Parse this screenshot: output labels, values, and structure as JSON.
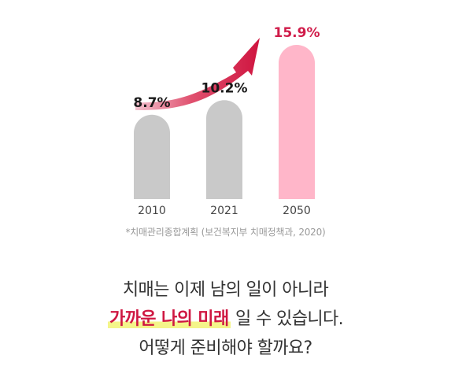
{
  "chart_data": {
    "type": "bar",
    "categories": [
      "2010",
      "2021",
      "2050"
    ],
    "values": [
      8.7,
      10.2,
      15.9
    ],
    "value_labels": [
      "8.7%",
      "10.2%",
      "15.9%"
    ],
    "unit": "%",
    "colors": [
      "#c9c9c9",
      "#c9c9c9",
      "#ffb6c9"
    ],
    "label_colors": [
      "#1a1a1a",
      "#1a1a1a",
      "#d01c4a"
    ],
    "arrow_color": "#d0143f",
    "ylim": [
      0,
      16
    ],
    "grid": false,
    "legend": "none"
  },
  "source_note": "*치매관리종합계획 (보건복지부 치매정책과, 2020)",
  "headline": {
    "line1": "치매는 이제 남의 일이 아니라",
    "line2_highlight": "가까운 나의 미래",
    "line2_rest": " 일 수 있습니다.",
    "line3": "어떻게 준비해야 할까요?"
  }
}
